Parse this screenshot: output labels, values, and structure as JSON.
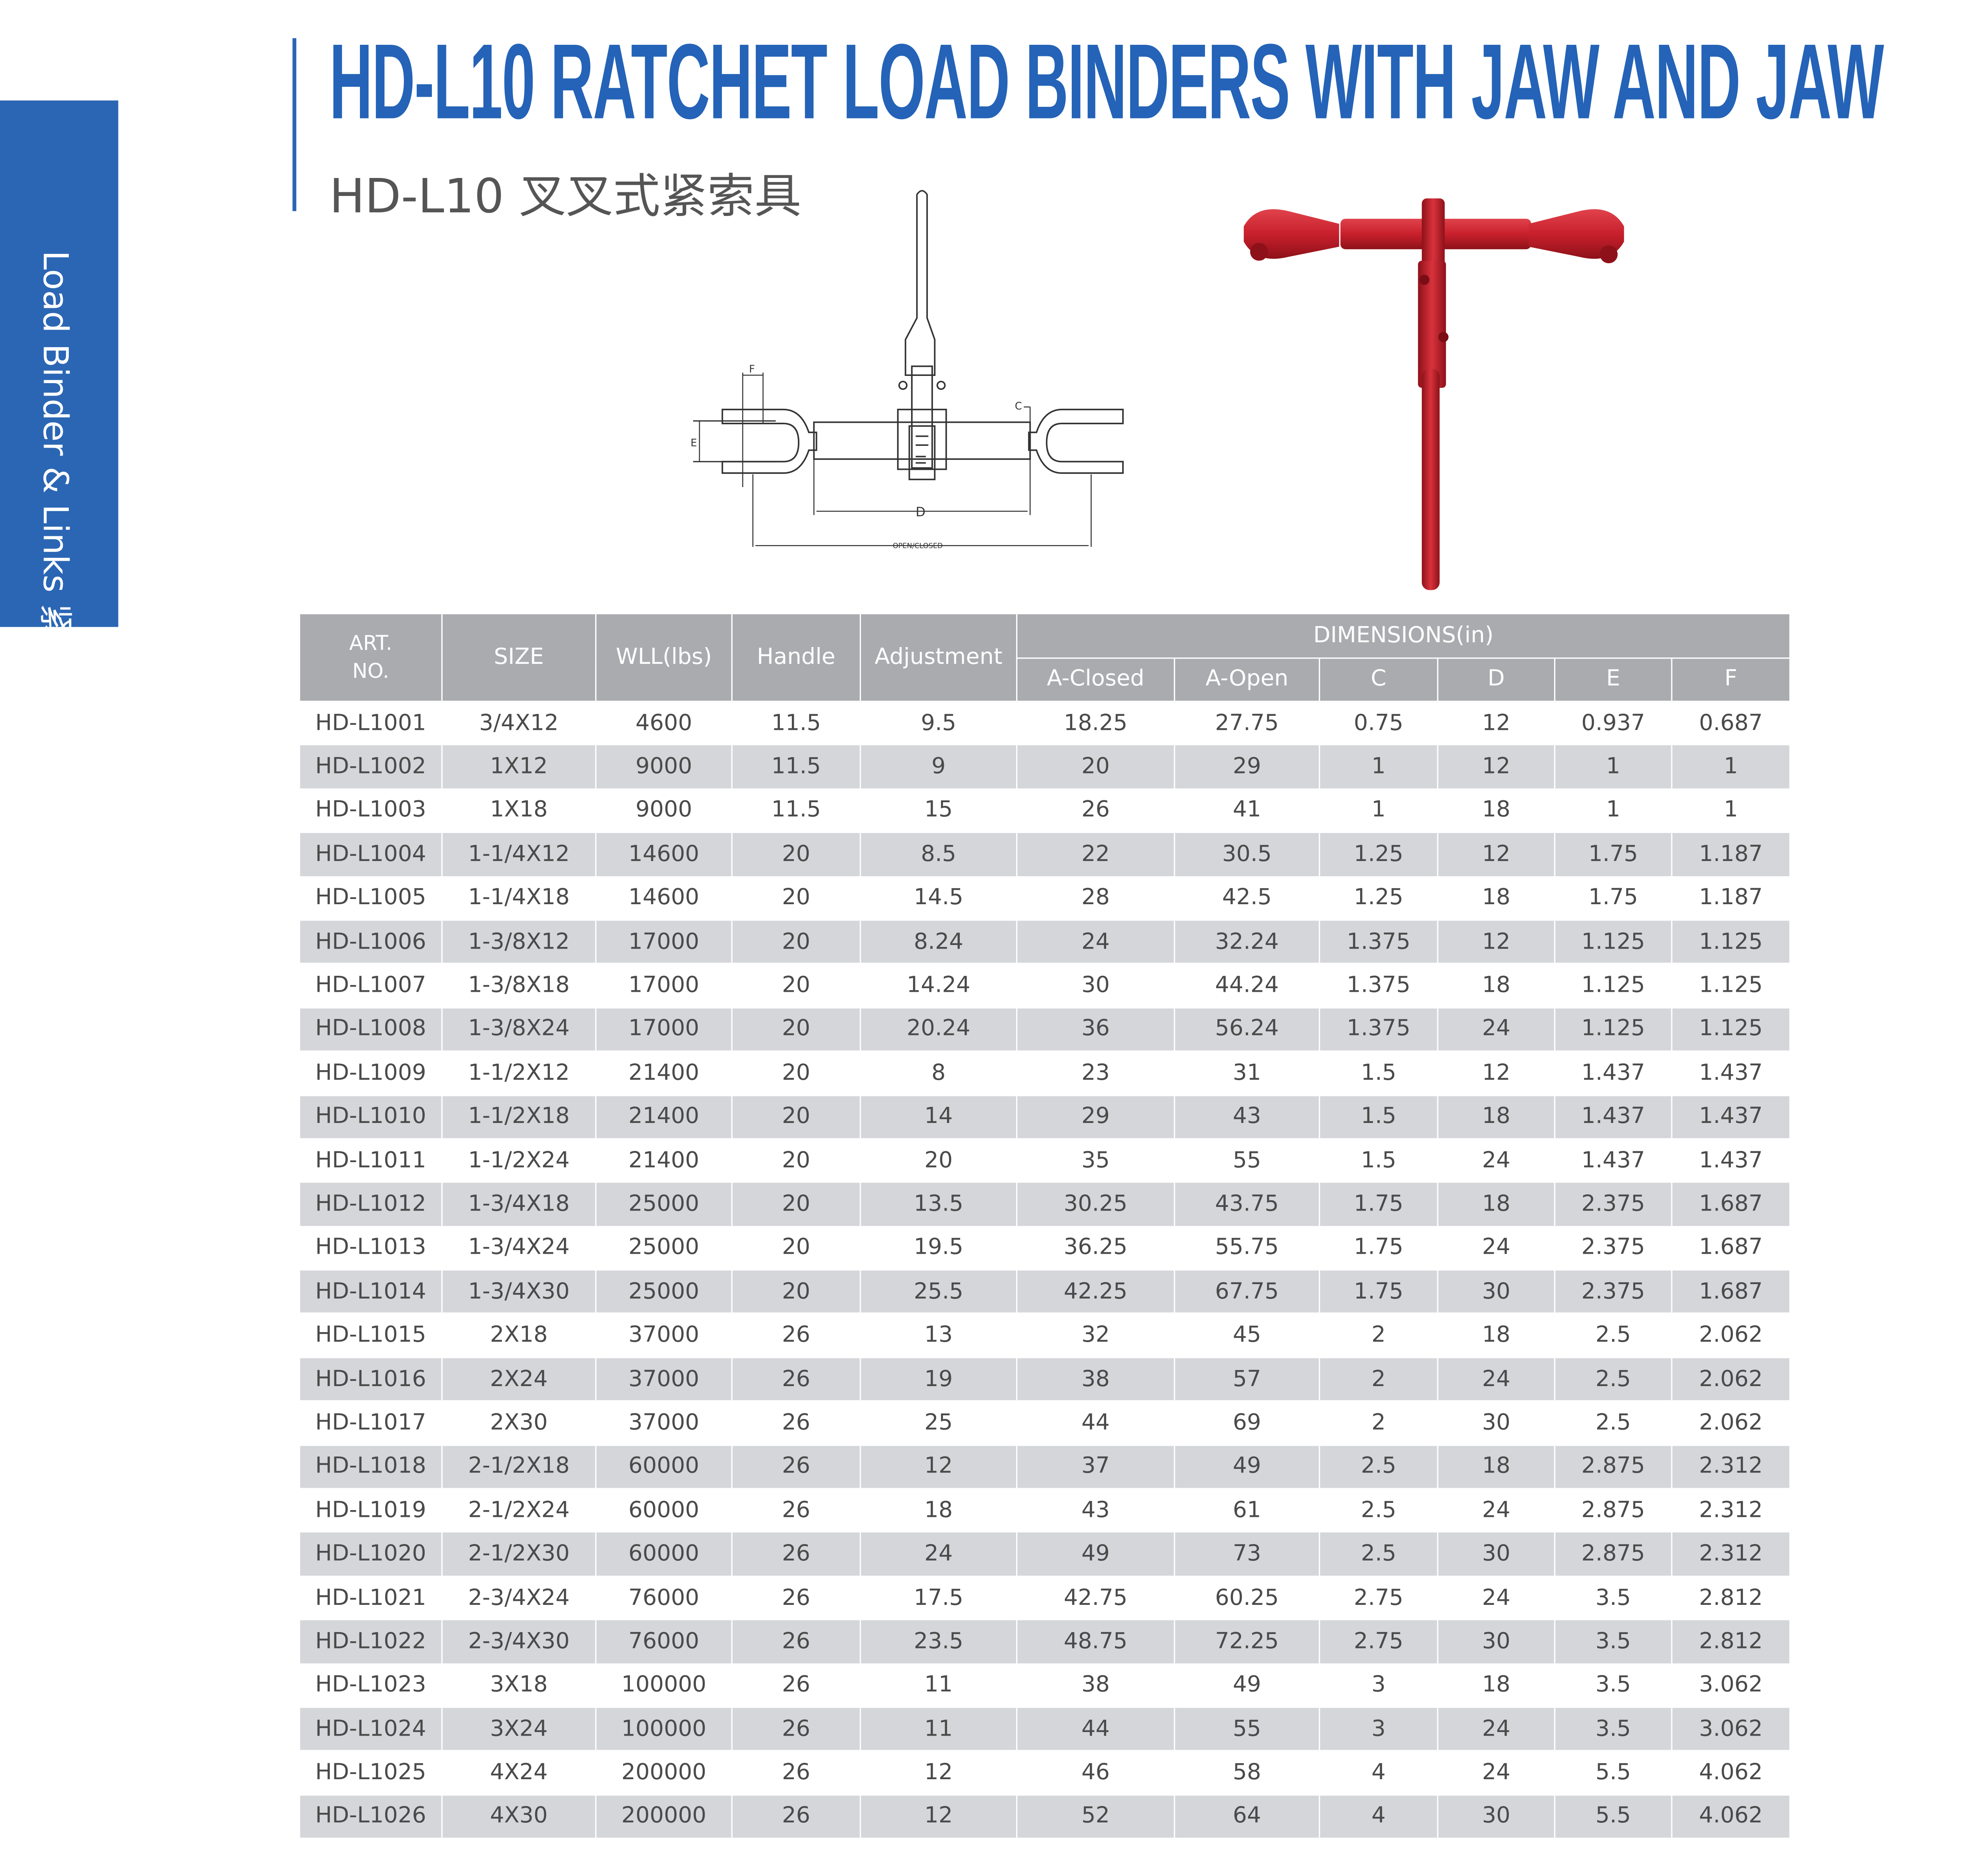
{
  "side_tab": {
    "label": "Load Binder & Links 紧索具及环",
    "color": "#2b66b4"
  },
  "header": {
    "title": "HD-L10 RATCHET LOAD BINDERS WITH JAW AND JAW",
    "subtitle": "HD-L10 叉叉式紧索具",
    "title_color": "#2463b7"
  },
  "diagram": {
    "labels": {
      "f": "F",
      "e": "E",
      "c": "C",
      "d": "D",
      "open_closed": "OPEN/CLOSED"
    }
  },
  "photo": {
    "product_color": "#c8202c"
  },
  "table": {
    "header_color": "#a9abae",
    "columns": {
      "art_no": "ART.\nNO.",
      "size": "SIZE",
      "wll": "WLL(lbs)",
      "handle": "Handle",
      "adjustment": "Adjustment",
      "dimensions": "DIMENSIONS(in)",
      "dims": [
        "A-Closed",
        "A-Open",
        "C",
        "D",
        "E",
        "F"
      ]
    },
    "rows": [
      [
        "HD-L1001",
        "3/4X12",
        "4600",
        "11.5",
        "9.5",
        "18.25",
        "27.75",
        "0.75",
        "12",
        "0.937",
        "0.687"
      ],
      [
        "HD-L1002",
        "1X12",
        "9000",
        "11.5",
        "9",
        "20",
        "29",
        "1",
        "12",
        "1",
        "1"
      ],
      [
        "HD-L1003",
        "1X18",
        "9000",
        "11.5",
        "15",
        "26",
        "41",
        "1",
        "18",
        "1",
        "1"
      ],
      [
        "HD-L1004",
        "1-1/4X12",
        "14600",
        "20",
        "8.5",
        "22",
        "30.5",
        "1.25",
        "12",
        "1.75",
        "1.187"
      ],
      [
        "HD-L1005",
        "1-1/4X18",
        "14600",
        "20",
        "14.5",
        "28",
        "42.5",
        "1.25",
        "18",
        "1.75",
        "1.187"
      ],
      [
        "HD-L1006",
        "1-3/8X12",
        "17000",
        "20",
        "8.24",
        "24",
        "32.24",
        "1.375",
        "12",
        "1.125",
        "1.125"
      ],
      [
        "HD-L1007",
        "1-3/8X18",
        "17000",
        "20",
        "14.24",
        "30",
        "44.24",
        "1.375",
        "18",
        "1.125",
        "1.125"
      ],
      [
        "HD-L1008",
        "1-3/8X24",
        "17000",
        "20",
        "20.24",
        "36",
        "56.24",
        "1.375",
        "24",
        "1.125",
        "1.125"
      ],
      [
        "HD-L1009",
        "1-1/2X12",
        "21400",
        "20",
        "8",
        "23",
        "31",
        "1.5",
        "12",
        "1.437",
        "1.437"
      ],
      [
        "HD-L1010",
        "1-1/2X18",
        "21400",
        "20",
        "14",
        "29",
        "43",
        "1.5",
        "18",
        "1.437",
        "1.437"
      ],
      [
        "HD-L1011",
        "1-1/2X24",
        "21400",
        "20",
        "20",
        "35",
        "55",
        "1.5",
        "24",
        "1.437",
        "1.437"
      ],
      [
        "HD-L1012",
        "1-3/4X18",
        "25000",
        "20",
        "13.5",
        "30.25",
        "43.75",
        "1.75",
        "18",
        "2.375",
        "1.687"
      ],
      [
        "HD-L1013",
        "1-3/4X24",
        "25000",
        "20",
        "19.5",
        "36.25",
        "55.75",
        "1.75",
        "24",
        "2.375",
        "1.687"
      ],
      [
        "HD-L1014",
        "1-3/4X30",
        "25000",
        "20",
        "25.5",
        "42.25",
        "67.75",
        "1.75",
        "30",
        "2.375",
        "1.687"
      ],
      [
        "HD-L1015",
        "2X18",
        "37000",
        "26",
        "13",
        "32",
        "45",
        "2",
        "18",
        "2.5",
        "2.062"
      ],
      [
        "HD-L1016",
        "2X24",
        "37000",
        "26",
        "19",
        "38",
        "57",
        "2",
        "24",
        "2.5",
        "2.062"
      ],
      [
        "HD-L1017",
        "2X30",
        "37000",
        "26",
        "25",
        "44",
        "69",
        "2",
        "30",
        "2.5",
        "2.062"
      ],
      [
        "HD-L1018",
        "2-1/2X18",
        "60000",
        "26",
        "12",
        "37",
        "49",
        "2.5",
        "18",
        "2.875",
        "2.312"
      ],
      [
        "HD-L1019",
        "2-1/2X24",
        "60000",
        "26",
        "18",
        "43",
        "61",
        "2.5",
        "24",
        "2.875",
        "2.312"
      ],
      [
        "HD-L1020",
        "2-1/2X30",
        "60000",
        "26",
        "24",
        "49",
        "73",
        "2.5",
        "30",
        "2.875",
        "2.312"
      ],
      [
        "HD-L1021",
        "2-3/4X24",
        "76000",
        "26",
        "17.5",
        "42.75",
        "60.25",
        "2.75",
        "24",
        "3.5",
        "2.812"
      ],
      [
        "HD-L1022",
        "2-3/4X30",
        "76000",
        "26",
        "23.5",
        "48.75",
        "72.25",
        "2.75",
        "30",
        "3.5",
        "2.812"
      ],
      [
        "HD-L1023",
        "3X18",
        "100000",
        "26",
        "11",
        "38",
        "49",
        "3",
        "18",
        "3.5",
        "3.062"
      ],
      [
        "HD-L1024",
        "3X24",
        "100000",
        "26",
        "11",
        "44",
        "55",
        "3",
        "24",
        "3.5",
        "3.062"
      ],
      [
        "HD-L1025",
        "4X24",
        "200000",
        "26",
        "12",
        "46",
        "58",
        "4",
        "24",
        "5.5",
        "4.062"
      ],
      [
        "HD-L1026",
        "4X30",
        "200000",
        "26",
        "12",
        "52",
        "64",
        "4",
        "30",
        "5.5",
        "4.062"
      ]
    ]
  }
}
